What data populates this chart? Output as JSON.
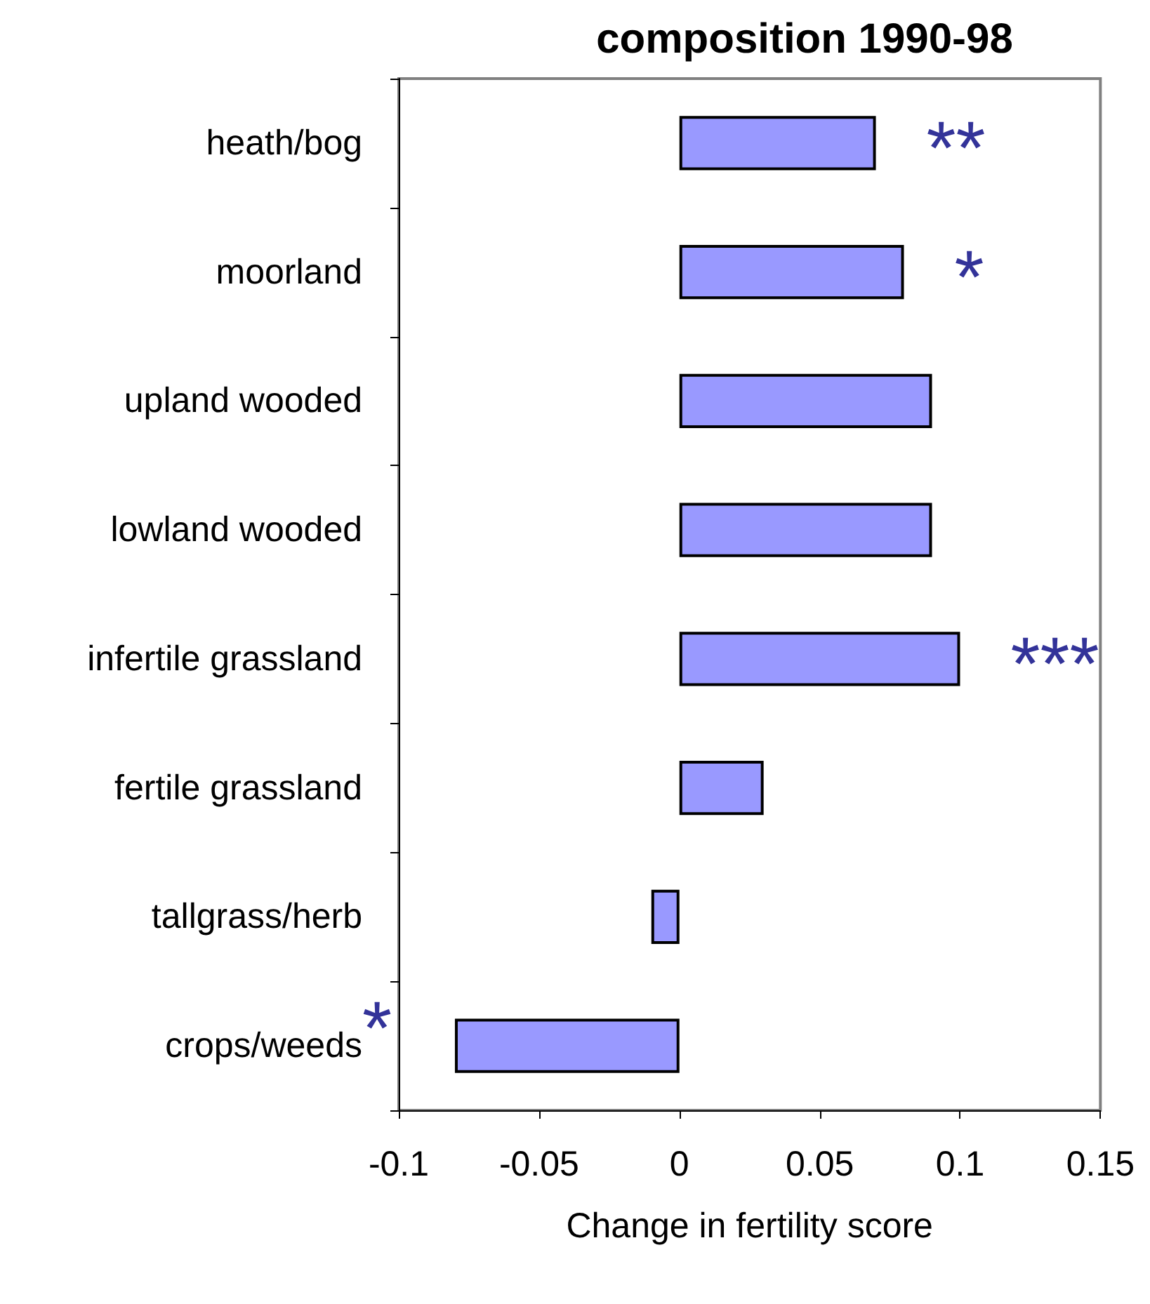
{
  "chart_data": {
    "type": "bar",
    "orientation": "horizontal",
    "title": "composition 1990-98",
    "xlabel": "Change in fertility score",
    "categories": [
      "heath/bog",
      "moorland",
      "upland wooded",
      "lowland wooded",
      "infertile grassland",
      "fertile grassland",
      "tallgrass/herb",
      "crops/weeds"
    ],
    "values": [
      0.07,
      0.08,
      0.09,
      0.09,
      0.1,
      0.03,
      -0.01,
      -0.08
    ],
    "color": "#9999ff",
    "xlim": [
      -0.1,
      0.15
    ],
    "xticks": [
      -0.1,
      -0.05,
      0,
      0.05,
      0.1,
      0.15
    ],
    "grid": false,
    "annotations": [
      {
        "text": "**",
        "x": 0.07,
        "y": "heath/bog"
      },
      {
        "text": "*",
        "x": 0.08,
        "y": "moorland"
      },
      {
        "text": "***",
        "x": 0.1,
        "y": "infertile grassland"
      },
      {
        "text": "*",
        "x": -0.08,
        "y": "crops/weeds"
      }
    ]
  }
}
